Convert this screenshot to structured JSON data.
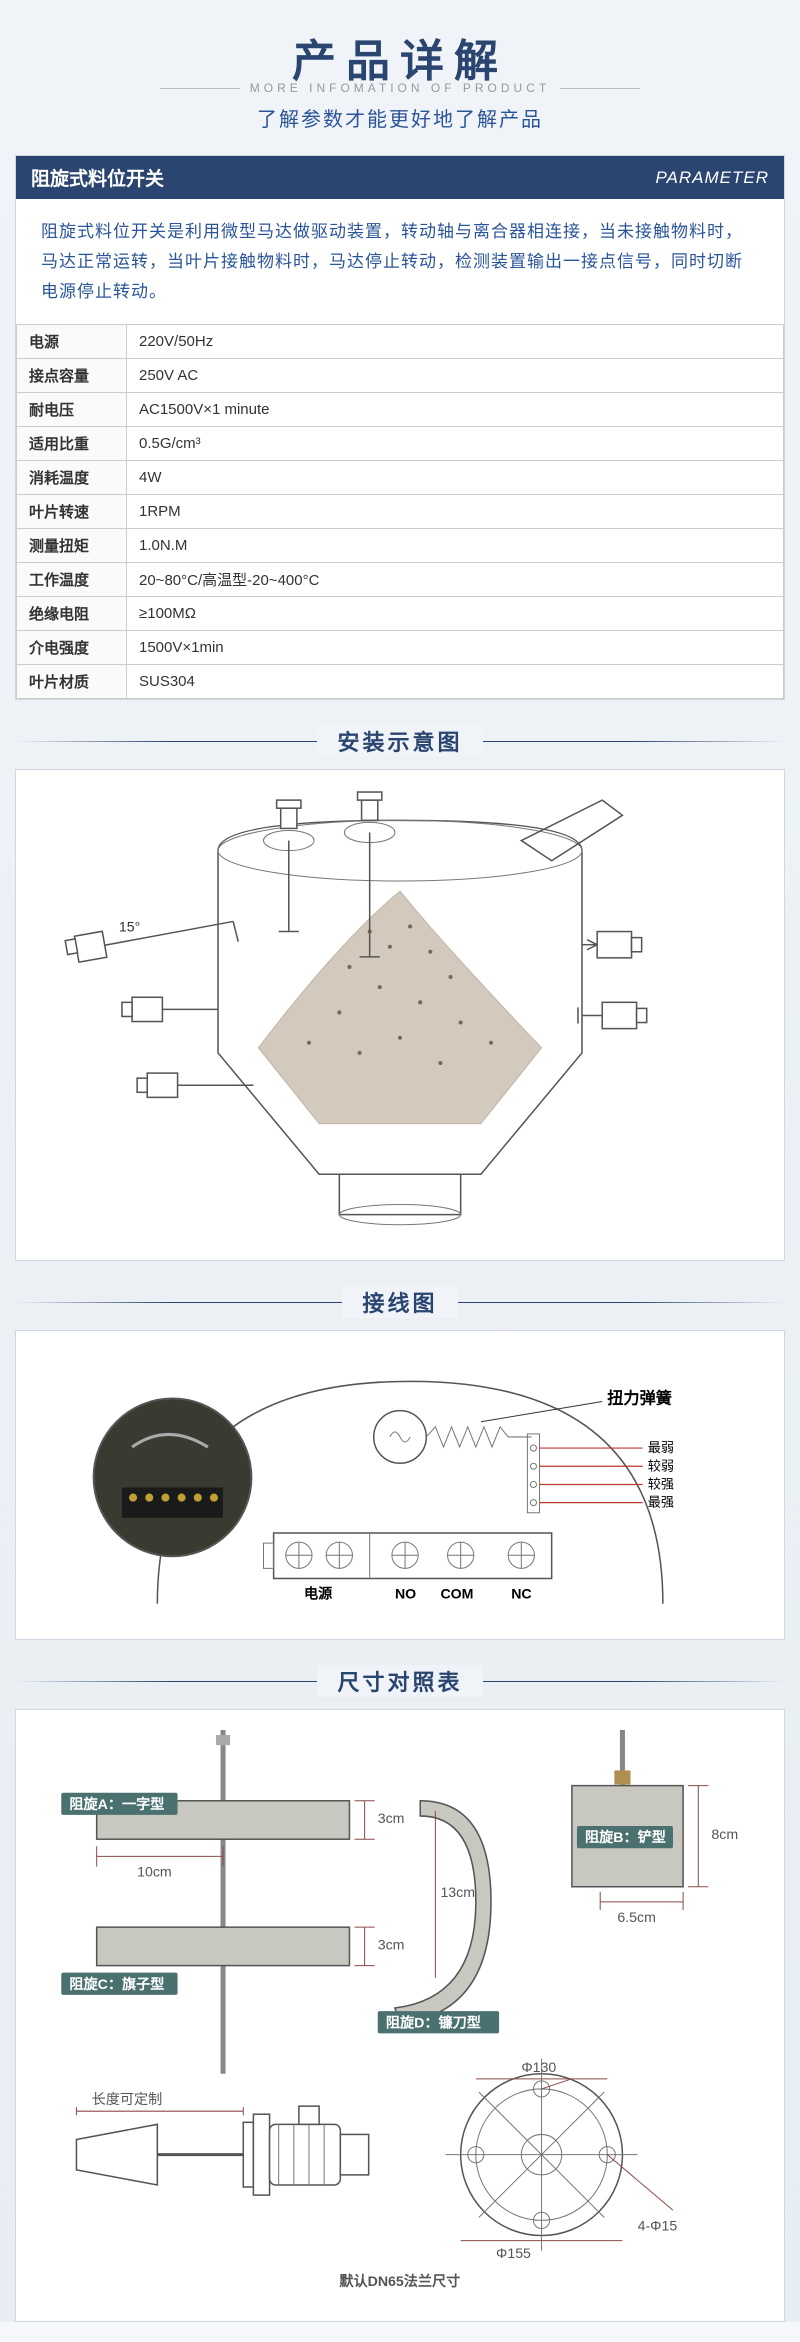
{
  "header": {
    "title": "产品详解",
    "sub_en": "MORE INFOMATION OF PRODUCT",
    "sub_cn": "了解参数才能更好地了解产品"
  },
  "param_panel": {
    "title_left": "阻旋式料位开关",
    "title_right": "PARAMETER",
    "description": "阻旋式料位开关是利用微型马达做驱动装置，转动轴与离合器相连接，当未接触物料时，马达正常运转，当叶片接触物料时，马达停止转动，检测装置输出一接点信号，同时切断电源停止转动。",
    "specs": [
      {
        "k": "电源",
        "v": "220V/50Hz"
      },
      {
        "k": "接点容量",
        "v": "250V AC"
      },
      {
        "k": "耐电压",
        "v": "AC1500V×1 minute"
      },
      {
        "k": "适用比重",
        "v": "0.5G/cm³"
      },
      {
        "k": "消耗温度",
        "v": "4W"
      },
      {
        "k": "叶片转速",
        "v": "1RPM"
      },
      {
        "k": "测量扭矩",
        "v": "1.0N.M"
      },
      {
        "k": "工作温度",
        "v": "20~80°C/高温型-20~400°C"
      },
      {
        "k": "绝缘电阻",
        "v": "≥100MΩ"
      },
      {
        "k": "介电强度",
        "v": "1500V×1min"
      },
      {
        "k": "叶片材质",
        "v": "SUS304"
      }
    ]
  },
  "sections": {
    "install": "安装示意图",
    "wiring": "接线图",
    "dimensions": "尺寸对照表"
  },
  "install_diagram": {
    "angle_label": "15°",
    "colors": {
      "outline": "#333",
      "material": "#b0a088"
    }
  },
  "wiring": {
    "spring_label": "扭力弹簧",
    "strengths": [
      "最弱",
      "较弱",
      "较强",
      "最强"
    ],
    "terminals": [
      "电源",
      "NO",
      "COM",
      "NC"
    ],
    "colors": {
      "red_line": "#c0392b",
      "terminal_bg": "#888"
    }
  },
  "dimensions": {
    "types": {
      "a": "阻旋A：一字型",
      "b": "阻旋B：铲型",
      "c": "阻旋C：旗子型",
      "d": "阻旋D：镰刀型"
    },
    "measures": {
      "a_len": "10cm",
      "a_h": "3cm",
      "c_h": "3cm",
      "b_h": "8cm",
      "b_w": "6.5cm",
      "d_h": "13cm"
    },
    "flange": {
      "custom": "长度可定制",
      "d1": "Φ130",
      "d2": "Φ155",
      "d3": "4-Φ15",
      "note": "默认DN65法兰尺寸"
    },
    "colors": {
      "badge": "#4a7070",
      "metal": "#c8c8c0",
      "dim": "#8a4a4a"
    }
  }
}
